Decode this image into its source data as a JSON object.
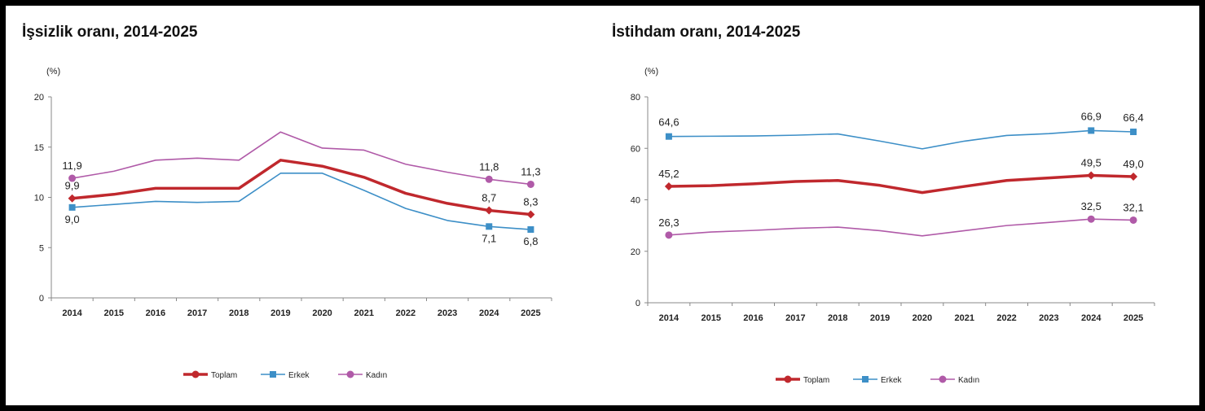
{
  "chart_data": [
    {
      "type": "line",
      "title": "İşsizlik oranı, 2014-2025",
      "ylabel": "(%)",
      "xlabel": "",
      "x": [
        "2014",
        "2015",
        "2016",
        "2017",
        "2018",
        "2019",
        "2020",
        "2021",
        "2022",
        "2023",
        "2024",
        "2025"
      ],
      "ylim": [
        0,
        20
      ],
      "yticks": [
        0,
        5,
        10,
        15,
        20
      ],
      "grid": false,
      "legend_position": "bottom",
      "series": [
        {
          "name": "Toplam",
          "color": "#c0282d",
          "marker": "diamond",
          "values": [
            9.9,
            10.3,
            10.9,
            10.9,
            10.9,
            13.7,
            13.1,
            12.0,
            10.4,
            9.4,
            8.7,
            8.3
          ],
          "labels": {
            "0": "9,9",
            "10": "8,7",
            "11": "8,3"
          }
        },
        {
          "name": "Erkek",
          "color": "#3d8fc7",
          "marker": "square",
          "values": [
            9.0,
            9.3,
            9.6,
            9.5,
            9.6,
            12.4,
            12.4,
            10.7,
            8.9,
            7.7,
            7.1,
            6.8
          ],
          "labels": {
            "0": "9,0",
            "10": "7,1",
            "11": "6,8"
          }
        },
        {
          "name": "Kadın",
          "color": "#b05aa8",
          "marker": "circle",
          "values": [
            11.9,
            12.6,
            13.7,
            13.9,
            13.7,
            16.5,
            14.9,
            14.7,
            13.3,
            12.5,
            11.8,
            11.3
          ],
          "labels": {
            "0": "11,9",
            "10": "11,8",
            "11": "11,3"
          }
        }
      ]
    },
    {
      "type": "line",
      "title": "İstihdam oranı, 2014-2025",
      "ylabel": "(%)",
      "xlabel": "",
      "x": [
        "2014",
        "2015",
        "2016",
        "2017",
        "2018",
        "2019",
        "2020",
        "2021",
        "2022",
        "2023",
        "2024",
        "2025"
      ],
      "ylim": [
        0,
        80
      ],
      "yticks": [
        0,
        20,
        40,
        60,
        80
      ],
      "grid": false,
      "legend_position": "bottom",
      "series": [
        {
          "name": "Toplam",
          "color": "#c0282d",
          "marker": "diamond",
          "values": [
            45.2,
            45.5,
            46.2,
            47.1,
            47.5,
            45.6,
            42.8,
            45.2,
            47.5,
            48.5,
            49.5,
            49.0
          ],
          "labels": {
            "0": "45,2",
            "10": "49,5",
            "11": "49,0"
          }
        },
        {
          "name": "Erkek",
          "color": "#3d8fc7",
          "marker": "square",
          "values": [
            64.6,
            64.7,
            64.8,
            65.1,
            65.6,
            62.8,
            59.8,
            62.8,
            65.0,
            65.7,
            66.9,
            66.4
          ],
          "labels": {
            "0": "64,6",
            "10": "66,9",
            "11": "66,4"
          }
        },
        {
          "name": "Kadın",
          "color": "#b05aa8",
          "marker": "circle",
          "values": [
            26.3,
            27.5,
            28.1,
            28.9,
            29.4,
            28.0,
            26.0,
            28.0,
            30.0,
            31.2,
            32.5,
            32.1
          ],
          "labels": {
            "0": "26,3",
            "10": "32,5",
            "11": "32,1"
          }
        }
      ]
    }
  ]
}
